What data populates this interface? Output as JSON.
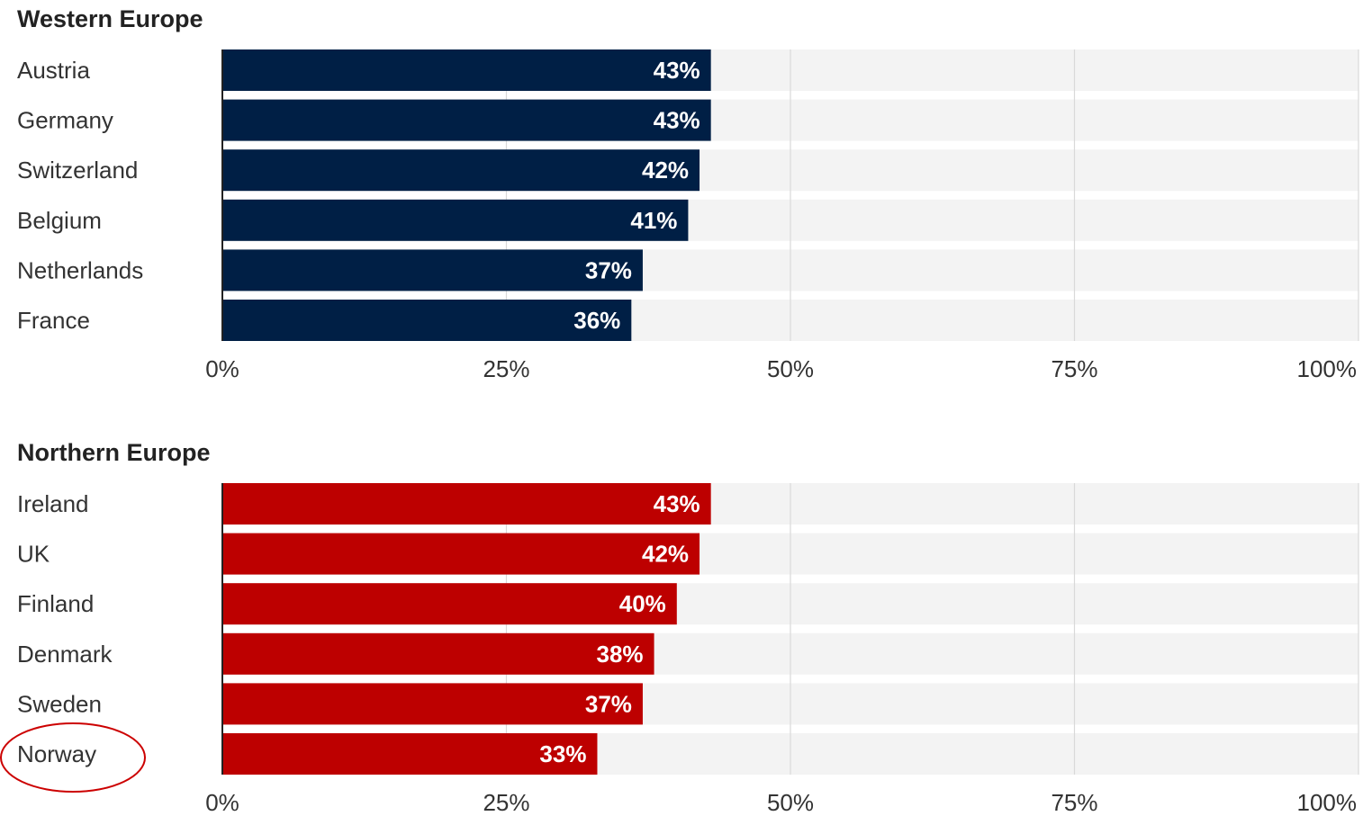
{
  "chart_data": [
    {
      "type": "bar",
      "orientation": "horizontal",
      "title": "Western Europe",
      "categories": [
        "Austria",
        "Germany",
        "Switzerland",
        "Belgium",
        "Netherlands",
        "France"
      ],
      "values": [
        43,
        43,
        42,
        41,
        37,
        36
      ],
      "value_labels": [
        "43%",
        "43%",
        "42%",
        "41%",
        "37%",
        "36%"
      ],
      "xlim": [
        0,
        100
      ],
      "xticks": [
        0,
        25,
        50,
        75,
        100
      ],
      "xtick_labels": [
        "0%",
        "25%",
        "50%",
        "75%",
        "100%"
      ],
      "bar_color": "#001f45",
      "track_color": "#f3f3f3",
      "grid": true
    },
    {
      "type": "bar",
      "orientation": "horizontal",
      "title": "Northern Europe",
      "categories": [
        "Ireland",
        "UK",
        "Finland",
        "Denmark",
        "Sweden",
        "Norway"
      ],
      "values": [
        43,
        42,
        40,
        38,
        37,
        33
      ],
      "value_labels": [
        "43%",
        "42%",
        "40%",
        "38%",
        "37%",
        "33%"
      ],
      "xlim": [
        0,
        100
      ],
      "xticks": [
        0,
        25,
        50,
        75,
        100
      ],
      "xtick_labels": [
        "0%",
        "25%",
        "50%",
        "75%",
        "100%"
      ],
      "bar_color": "#bd0000",
      "track_color": "#f3f3f3",
      "grid": true,
      "highlighted_category": "Norway",
      "highlight_color": "#cc0000"
    }
  ]
}
